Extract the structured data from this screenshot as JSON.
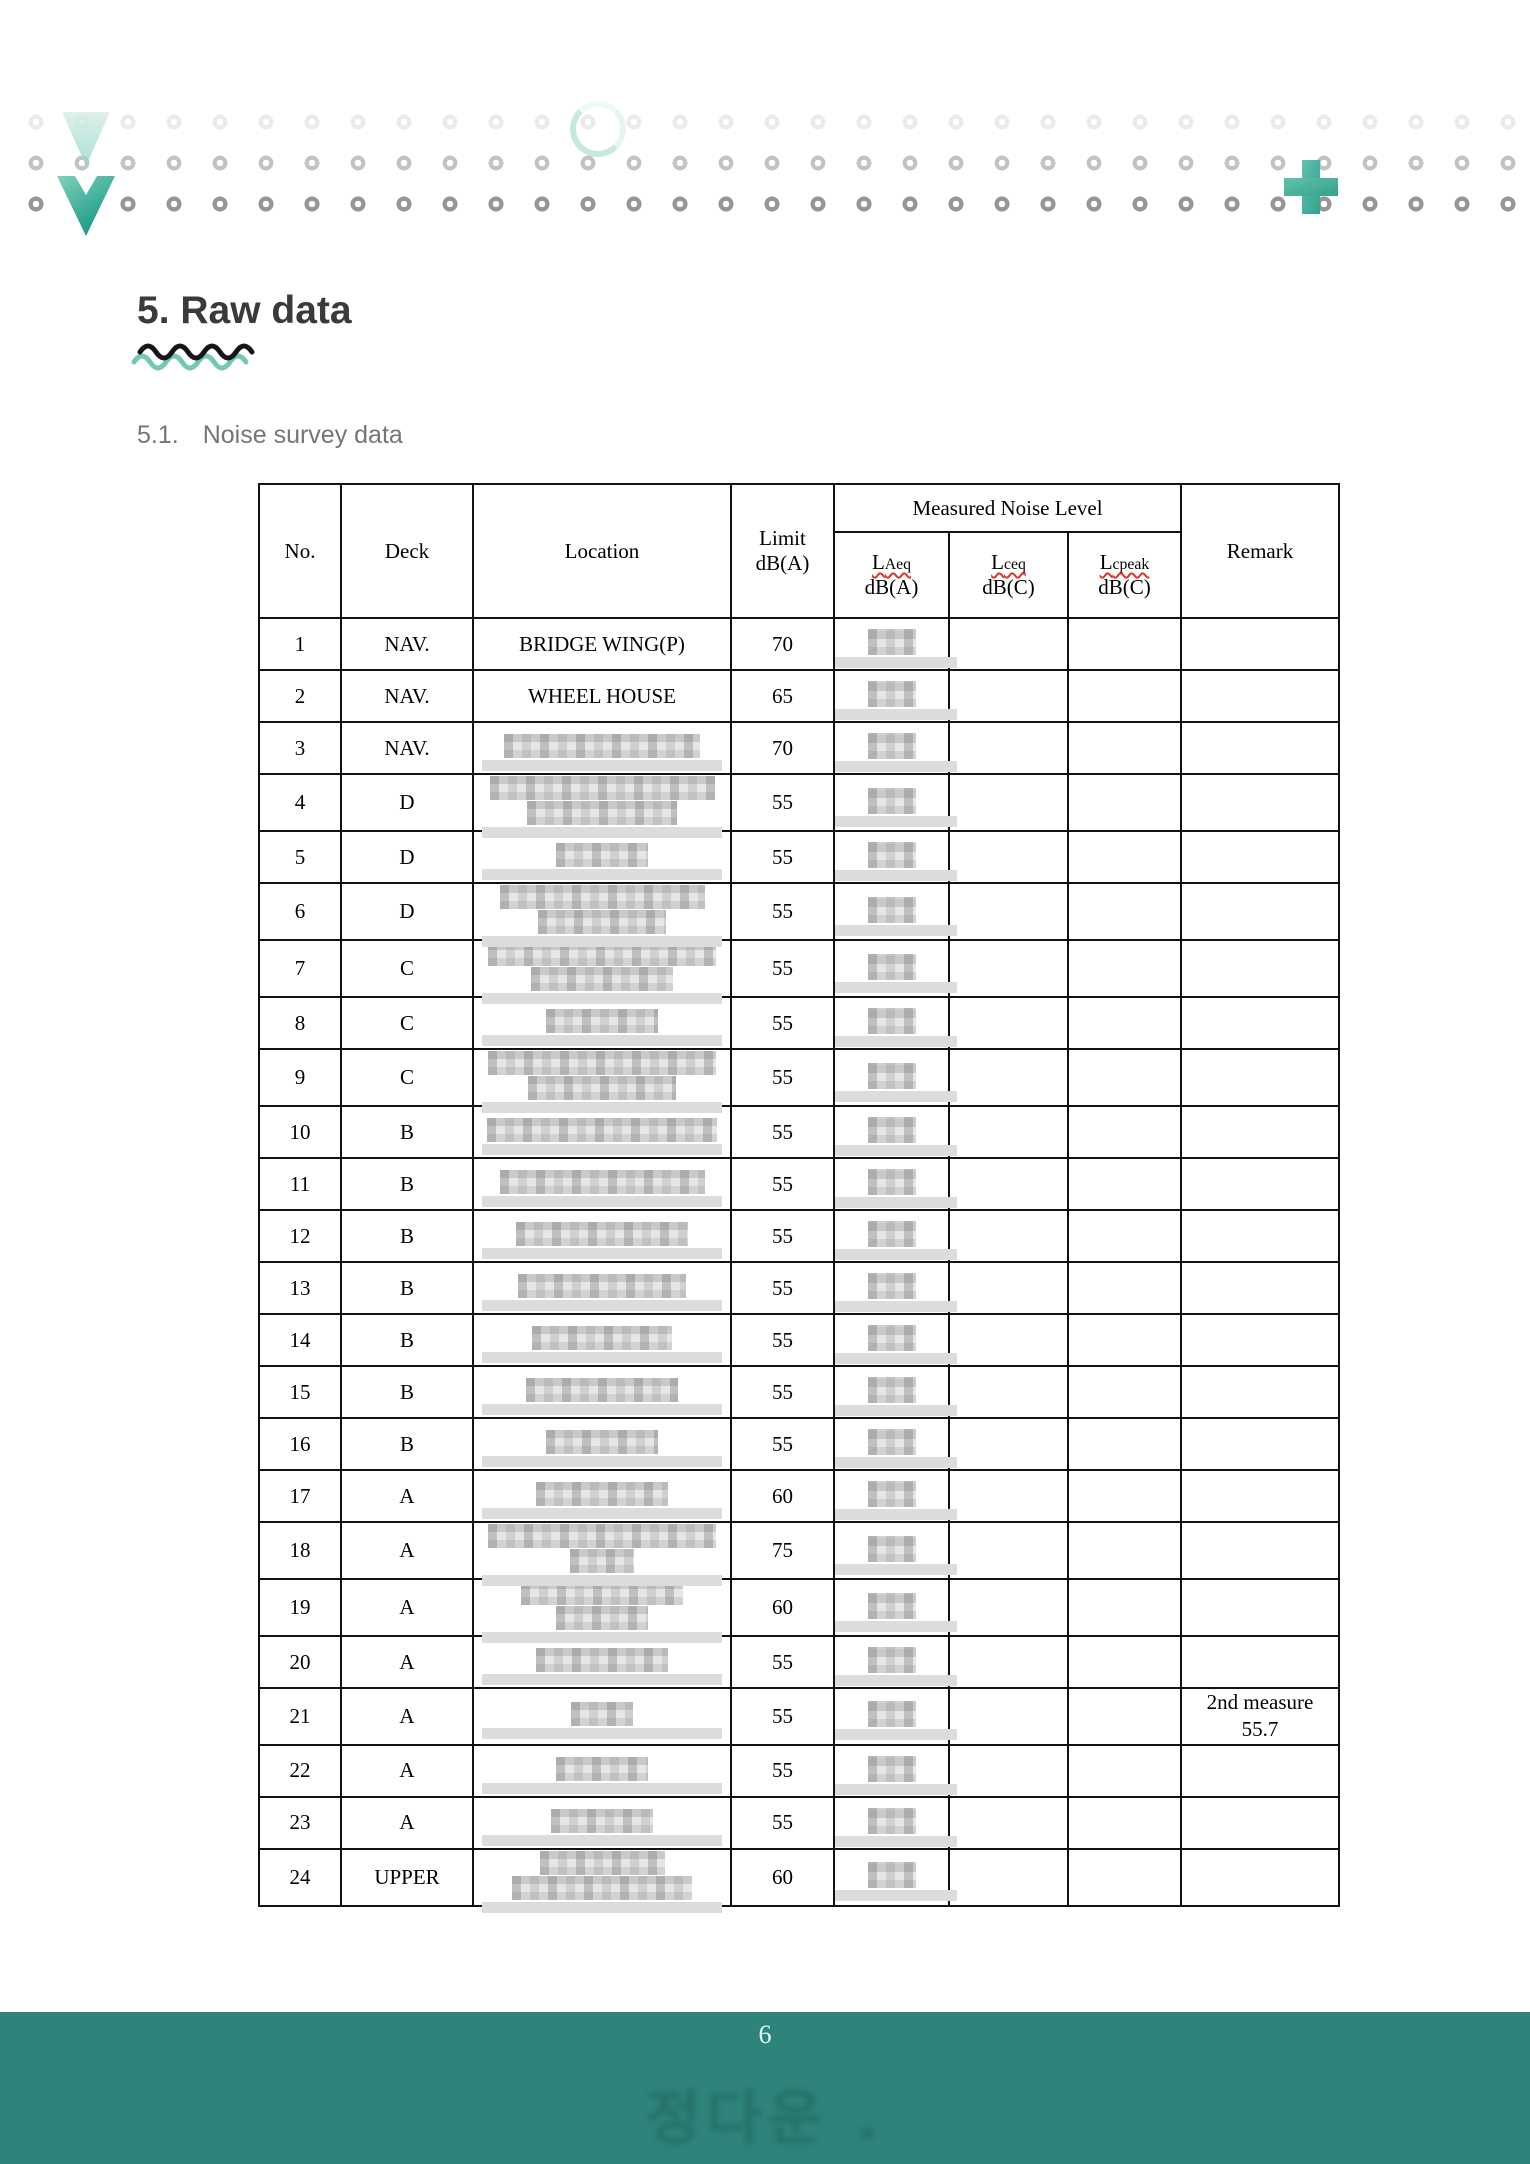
{
  "page": {
    "heading": "5. Raw data",
    "section_label": "5.1.",
    "section_title": "Noise survey data",
    "footer_page_number": "6",
    "watermark_text": "정다운 .",
    "accent_teal": "#2e837a"
  },
  "table": {
    "headers": {
      "no": "No.",
      "deck": "Deck",
      "location": "Location",
      "limit": "Limit\ndB(A)",
      "measured_group": "Measured Noise Level",
      "laeq": {
        "main": "L",
        "sub": "Aeq",
        "unit": "dB(A)"
      },
      "lceq": {
        "main": "L",
        "sub": "ceq",
        "unit": "dB(C)"
      },
      "lcpeak": {
        "main": "L",
        "sub": "cpeak",
        "unit": "dB(C)"
      },
      "remark": "Remark"
    },
    "rows": [
      {
        "no": "1",
        "deck": "NAV.",
        "location": "BRIDGE WING(P)",
        "location_redacted": false,
        "redact_widths": [],
        "limit": "70",
        "laeq_redacted": true,
        "lceq": "",
        "lcpeak": "",
        "remark": ""
      },
      {
        "no": "2",
        "deck": "NAV.",
        "location": "WHEEL HOUSE",
        "location_redacted": false,
        "redact_widths": [],
        "limit": "65",
        "laeq_redacted": true,
        "lceq": "",
        "lcpeak": "",
        "remark": ""
      },
      {
        "no": "3",
        "deck": "NAV.",
        "location": "",
        "location_redacted": true,
        "redact_widths": [
          196
        ],
        "limit": "70",
        "laeq_redacted": true,
        "lceq": "",
        "lcpeak": "",
        "remark": ""
      },
      {
        "no": "4",
        "deck": "D",
        "location": "",
        "location_redacted": true,
        "redact_widths": [
          225,
          150
        ],
        "limit": "55",
        "laeq_redacted": true,
        "lceq": "",
        "lcpeak": "",
        "remark": ""
      },
      {
        "no": "5",
        "deck": "D",
        "location": "",
        "location_redacted": true,
        "redact_widths": [
          92
        ],
        "limit": "55",
        "laeq_redacted": true,
        "lceq": "",
        "lcpeak": "",
        "remark": ""
      },
      {
        "no": "6",
        "deck": "D",
        "location": "",
        "location_redacted": true,
        "redact_widths": [
          205,
          128
        ],
        "limit": "55",
        "laeq_redacted": true,
        "lceq": "",
        "lcpeak": "",
        "remark": ""
      },
      {
        "no": "7",
        "deck": "C",
        "location": "",
        "location_redacted": true,
        "redact_widths": [
          228,
          142
        ],
        "limit": "55",
        "laeq_redacted": true,
        "lceq": "",
        "lcpeak": "",
        "remark": ""
      },
      {
        "no": "8",
        "deck": "C",
        "location": "",
        "location_redacted": true,
        "redact_widths": [
          112
        ],
        "limit": "55",
        "laeq_redacted": true,
        "lceq": "",
        "lcpeak": "",
        "remark": ""
      },
      {
        "no": "9",
        "deck": "C",
        "location": "",
        "location_redacted": true,
        "redact_widths": [
          228,
          148
        ],
        "limit": "55",
        "laeq_redacted": true,
        "lceq": "",
        "lcpeak": "",
        "remark": ""
      },
      {
        "no": "10",
        "deck": "B",
        "location": "",
        "location_redacted": true,
        "redact_widths": [
          230
        ],
        "limit": "55",
        "laeq_redacted": true,
        "lceq": "",
        "lcpeak": "",
        "remark": ""
      },
      {
        "no": "11",
        "deck": "B",
        "location": "",
        "location_redacted": true,
        "redact_widths": [
          205
        ],
        "limit": "55",
        "laeq_redacted": true,
        "lceq": "",
        "lcpeak": "",
        "remark": ""
      },
      {
        "no": "12",
        "deck": "B",
        "location": "",
        "location_redacted": true,
        "redact_widths": [
          172
        ],
        "limit": "55",
        "laeq_redacted": true,
        "lceq": "",
        "lcpeak": "",
        "remark": ""
      },
      {
        "no": "13",
        "deck": "B",
        "location": "",
        "location_redacted": true,
        "redact_widths": [
          168
        ],
        "limit": "55",
        "laeq_redacted": true,
        "lceq": "",
        "lcpeak": "",
        "remark": ""
      },
      {
        "no": "14",
        "deck": "B",
        "location": "",
        "location_redacted": true,
        "redact_widths": [
          140
        ],
        "limit": "55",
        "laeq_redacted": true,
        "lceq": "",
        "lcpeak": "",
        "remark": ""
      },
      {
        "no": "15",
        "deck": "B",
        "location": "",
        "location_redacted": true,
        "redact_widths": [
          152
        ],
        "limit": "55",
        "laeq_redacted": true,
        "lceq": "",
        "lcpeak": "",
        "remark": ""
      },
      {
        "no": "16",
        "deck": "B",
        "location": "",
        "location_redacted": true,
        "redact_widths": [
          112
        ],
        "limit": "55",
        "laeq_redacted": true,
        "lceq": "",
        "lcpeak": "",
        "remark": ""
      },
      {
        "no": "17",
        "deck": "A",
        "location": "",
        "location_redacted": true,
        "redact_widths": [
          132
        ],
        "limit": "60",
        "laeq_redacted": true,
        "lceq": "",
        "lcpeak": "",
        "remark": ""
      },
      {
        "no": "18",
        "deck": "A",
        "location": "",
        "location_redacted": true,
        "redact_widths": [
          228,
          64
        ],
        "limit": "75",
        "laeq_redacted": true,
        "lceq": "",
        "lcpeak": "",
        "remark": ""
      },
      {
        "no": "19",
        "deck": "A",
        "location": "",
        "location_redacted": true,
        "redact_widths": [
          162,
          92
        ],
        "limit": "60",
        "laeq_redacted": true,
        "lceq": "",
        "lcpeak": "",
        "remark": ""
      },
      {
        "no": "20",
        "deck": "A",
        "location": "",
        "location_redacted": true,
        "redact_widths": [
          132
        ],
        "limit": "55",
        "laeq_redacted": true,
        "lceq": "",
        "lcpeak": "",
        "remark": ""
      },
      {
        "no": "21",
        "deck": "A",
        "location": "",
        "location_redacted": true,
        "redact_widths": [
          62
        ],
        "limit": "55",
        "laeq_redacted": true,
        "lceq": "",
        "lcpeak": "",
        "remark": "2nd measure\n55.7"
      },
      {
        "no": "22",
        "deck": "A",
        "location": "",
        "location_redacted": true,
        "redact_widths": [
          92
        ],
        "limit": "55",
        "laeq_redacted": true,
        "lceq": "",
        "lcpeak": "",
        "remark": ""
      },
      {
        "no": "23",
        "deck": "A",
        "location": "",
        "location_redacted": true,
        "redact_widths": [
          102
        ],
        "limit": "55",
        "laeq_redacted": true,
        "lceq": "",
        "lcpeak": "",
        "remark": ""
      },
      {
        "no": "24",
        "deck": "UPPER",
        "location": "",
        "location_redacted": true,
        "redact_widths": [
          125,
          180
        ],
        "limit": "60",
        "laeq_redacted": true,
        "lceq": "",
        "lcpeak": "",
        "remark": ""
      }
    ]
  }
}
